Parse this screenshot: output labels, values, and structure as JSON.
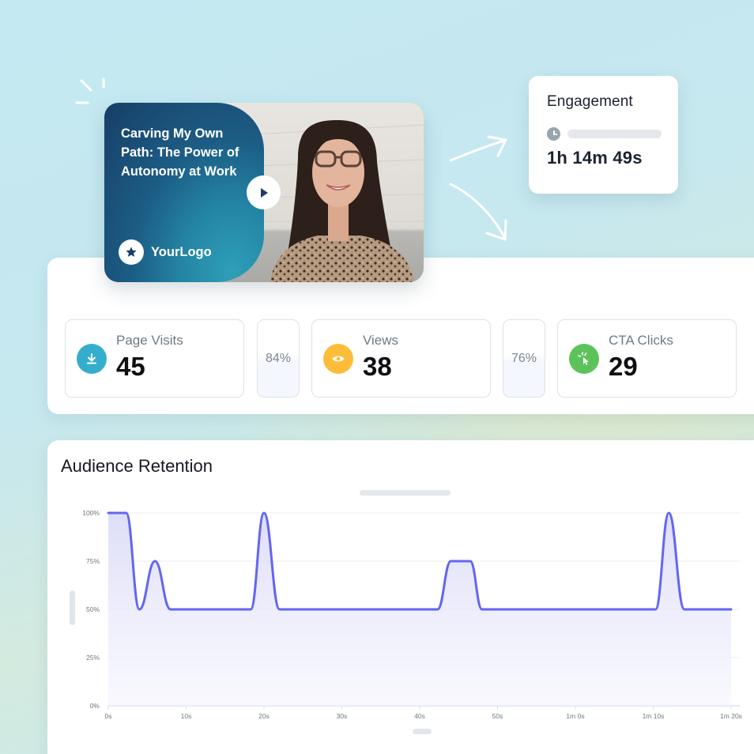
{
  "video": {
    "title": "Carving My Own Path: The Power of Autonomy at Work",
    "title_lines": [
      "Carving My Own",
      "Path: The Power",
      "of Autonomy",
      "at Work"
    ],
    "logo_text": "YourLogo",
    "play_icon": "play-icon",
    "logo_icon": "star-icon"
  },
  "engagement": {
    "title": "Engagement",
    "icon": "clock-icon",
    "value": "1h 14m 49s"
  },
  "stats": {
    "cards": [
      {
        "label": "Page Visits",
        "value": "45",
        "icon": "download-icon",
        "color": "#35aecd"
      },
      {
        "label": "Views",
        "value": "38",
        "icon": "eye-icon",
        "color": "#fdbd39"
      },
      {
        "label": "CTA Clicks",
        "value": "29",
        "icon": "cursor-click-icon",
        "color": "#5cc35a"
      }
    ],
    "conversions": [
      "84%",
      "76%"
    ]
  },
  "chart": {
    "title": "Audience Retention",
    "line_color": "#6366f1"
  },
  "chart_data": {
    "type": "area",
    "title": "Audience Retention",
    "xlabel": "",
    "ylabel": "",
    "x_unit": "seconds",
    "xlim": [
      0,
      80
    ],
    "ylim": [
      0,
      100
    ],
    "x_ticks": [
      "0s",
      "10s",
      "20s",
      "30s",
      "40s",
      "50s",
      "1m 0s",
      "1m 10s",
      "1m 20s"
    ],
    "y_ticks": [
      "0%",
      "25%",
      "50%",
      "75%",
      "100%"
    ],
    "grid": true,
    "legend": null,
    "series": [
      {
        "name": "Retention",
        "x": [
          0,
          2.3,
          4,
          6,
          8,
          18.3,
          20,
          22,
          42.3,
          44,
          46.5,
          48,
          70.3,
          72,
          74,
          80
        ],
        "values": [
          100,
          100,
          50,
          75,
          50,
          50,
          100,
          50,
          50,
          75,
          75,
          50,
          50,
          100,
          50,
          50
        ]
      }
    ]
  }
}
